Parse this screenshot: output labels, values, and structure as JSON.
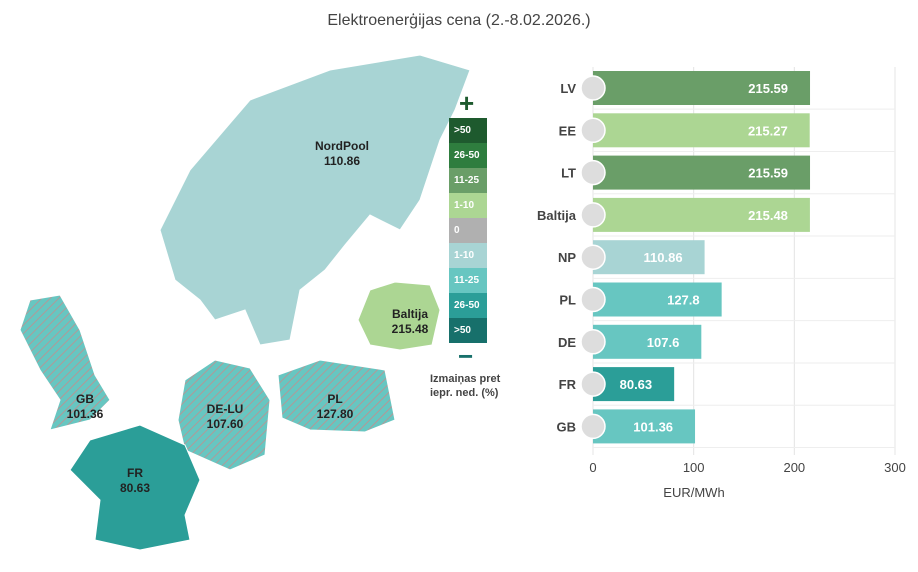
{
  "title": "Elektroenerģijas cena (2.-8.02.2026.)",
  "legend": {
    "plus": "+",
    "minus": "−",
    "items": [
      {
        "label": ">50",
        "color": "#1e5a2e"
      },
      {
        "label": "26-50",
        "color": "#2e7d3e"
      },
      {
        "label": "11-25",
        "color": "#6a9e68"
      },
      {
        "label": "1-10",
        "color": "#acd693"
      },
      {
        "label": "0",
        "color": "#b0b0b0"
      },
      {
        "label": "1-10",
        "color": "#a8d4d4"
      },
      {
        "label": "11-25",
        "color": "#67c6c1"
      },
      {
        "label": "26-50",
        "color": "#2b9e98"
      },
      {
        "label": ">50",
        "color": "#17706b"
      }
    ],
    "note_line1": "Izmaiņas pret",
    "note_line2": "iepr. ned. (%)"
  },
  "map": {
    "regions": [
      {
        "name": "NordPool",
        "value": "110.86"
      },
      {
        "name": "Baltija",
        "value": "215.48"
      },
      {
        "name": "GB",
        "value": "101.36"
      },
      {
        "name": "DE-LU",
        "value": "107.60"
      },
      {
        "name": "PL",
        "value": "127.80"
      },
      {
        "name": "FR",
        "value": "80.63"
      }
    ]
  },
  "chart_data": {
    "type": "bar",
    "orientation": "horizontal",
    "categories": [
      "LV",
      "EE",
      "LT",
      "Baltija",
      "NP",
      "PL",
      "DE",
      "FR",
      "GB"
    ],
    "values": [
      215.59,
      215.27,
      215.59,
      215.48,
      110.86,
      127.8,
      107.6,
      80.63,
      101.36
    ],
    "labels": [
      "215.59",
      "215.27",
      "215.59",
      "215.48",
      "110.86",
      "127.8",
      "107.6",
      "80.63",
      "101.36"
    ],
    "colors": [
      "#6a9e68",
      "#acd693",
      "#6a9e68",
      "#acd693",
      "#a8d4d4",
      "#67c6c1",
      "#67c6c1",
      "#2b9e98",
      "#67c6c1"
    ],
    "xlabel": "EUR/MWh",
    "xlim": [
      0,
      300
    ],
    "xticks": [
      "0",
      "100",
      "200",
      "300"
    ],
    "grid": true
  }
}
